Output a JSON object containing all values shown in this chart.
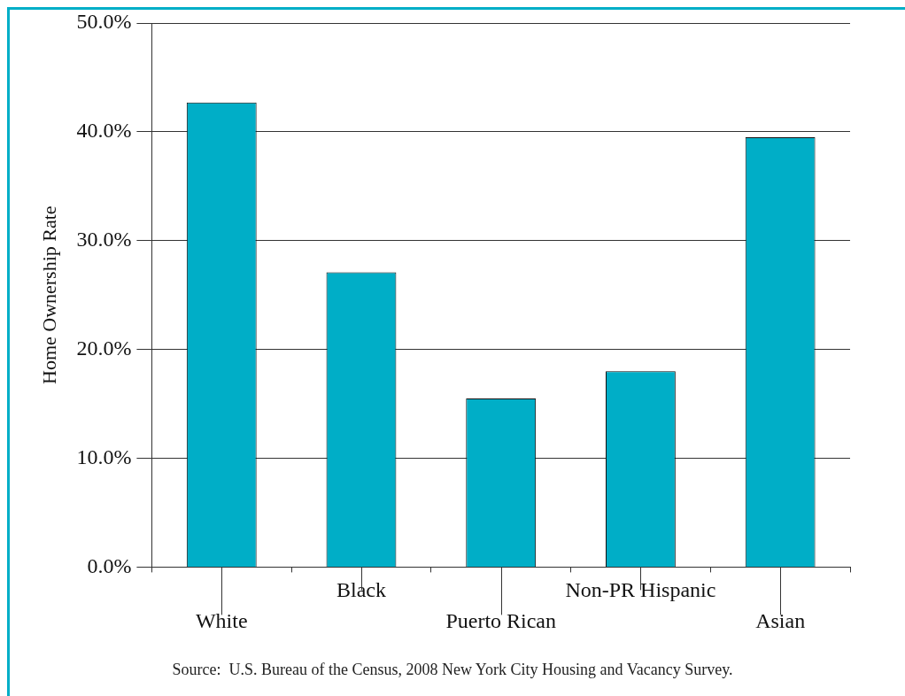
{
  "chart_data": {
    "type": "bar",
    "ylabel": "Home Ownership Rate",
    "categories": [
      "White",
      "Black",
      "Puerto Rican",
      "Non-PR Hispanic",
      "Asian"
    ],
    "values": [
      42.7,
      27.1,
      15.5,
      18.0,
      39.5
    ],
    "color": "#00aec7",
    "ylim": [
      0,
      50
    ],
    "yticks": [
      {
        "value": 0,
        "label": "0.0%"
      },
      {
        "value": 10,
        "label": "10.0%"
      },
      {
        "value": 20,
        "label": "20.0%"
      },
      {
        "value": 30,
        "label": "30.0%"
      },
      {
        "value": 40,
        "label": "40.0%"
      },
      {
        "value": 50,
        "label": "50.0%"
      }
    ],
    "grid": "y",
    "legend": false,
    "annotations": [
      "Source:  U.S. Bureau of the Census, 2008 New York City Housing and Vacancy Survey."
    ]
  }
}
